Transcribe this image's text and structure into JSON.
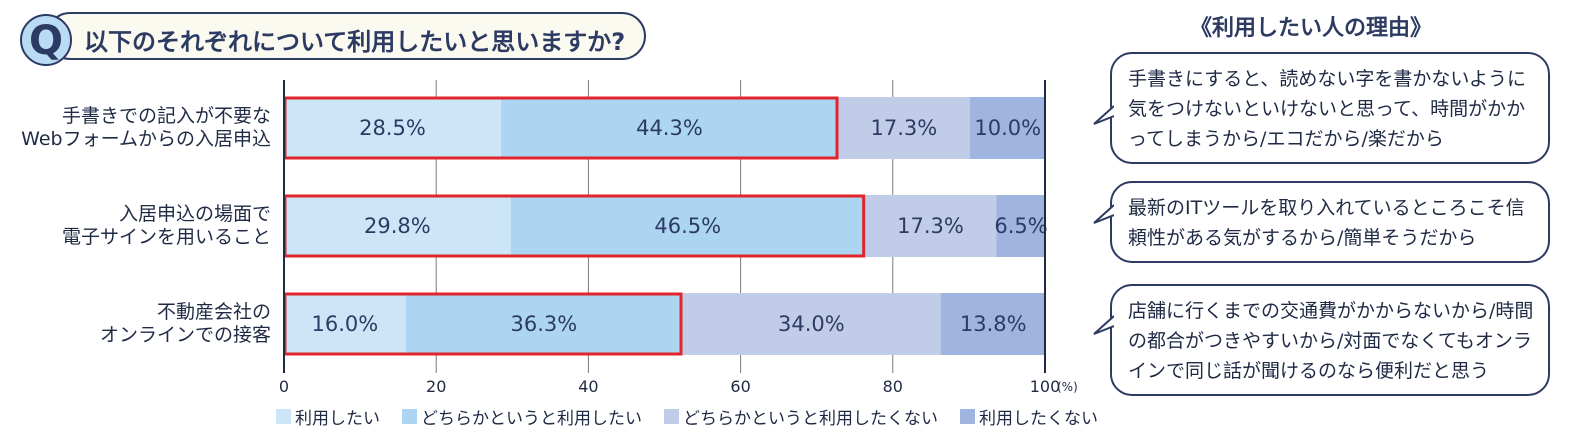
{
  "question": {
    "badge": "Q",
    "text": "以下のそれぞれについて利用したいと思いますか?"
  },
  "chart_data": {
    "type": "bar",
    "orientation": "horizontal",
    "stacked": true,
    "categories": [
      [
        "手書きでの記入が不要な",
        "Webフォームからの入居申込"
      ],
      [
        "入居申込の場面で",
        "電子サインを用いること"
      ],
      [
        "不動産会社の",
        "オンラインでの接客"
      ]
    ],
    "series": [
      {
        "name": "利用したい",
        "color": "#cce6f7",
        "values": [
          28.5,
          29.8,
          16.0
        ],
        "labels": [
          "28.5%",
          "29.8%",
          "16.0%"
        ]
      },
      {
        "name": "どちらかというと利用したい",
        "color": "#abd5f1",
        "values": [
          44.3,
          46.5,
          36.3
        ],
        "labels": [
          "44.3%",
          "46.5%",
          "36.3%"
        ]
      },
      {
        "name": "どちらかというと利用したくない",
        "color": "#c0cce8",
        "values": [
          17.3,
          17.3,
          34.0
        ],
        "labels": [
          "17.3%",
          "17.3%",
          "34.0%"
        ]
      },
      {
        "name": "利用したくない",
        "color": "#9fb4df",
        "values": [
          10.0,
          6.5,
          13.8
        ],
        "labels": [
          "10.0%",
          "6.5%",
          "13.8%"
        ]
      }
    ],
    "xlim": [
      0,
      100
    ],
    "xticks": [
      "0",
      "20",
      "40",
      "60",
      "80",
      "100"
    ],
    "xunit": "(%)",
    "grid": true,
    "highlight_color": "#e0262b",
    "highlight_series": [
      0,
      1
    ],
    "legend_position": "bottom"
  },
  "reasons": {
    "title": "《利用したい人の理由》",
    "items": [
      "手書きにすると、読めない字を書かないように気をつけないといけないと思って、時間がかかってしまうから/エコだから/楽だから",
      "最新のITツールを取り入れているところこそ信頼性がある気がするから/簡単そうだから",
      "店舗に行くまでの交通費がかからないから/時間の都合がつきやすいから/対面でなくてもオンラインで同じ話が聞けるのなら便利だと思う"
    ]
  },
  "colors": {
    "navy": "#2d3b63",
    "badge_fill": "#b9dcf4",
    "header_fill": "#fbfaf0"
  }
}
